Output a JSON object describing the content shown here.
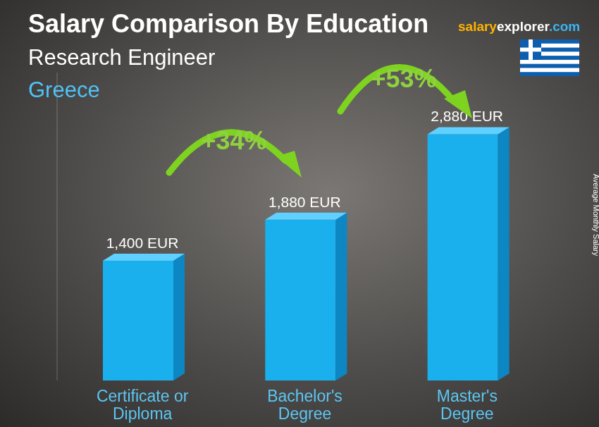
{
  "chart_data": {
    "type": "bar",
    "title": "Salary Comparison By Education",
    "subtitle": "Research Engineer",
    "country": "Greece",
    "source": "salaryexplorer.com",
    "ylabel": "Average Monthly Salary",
    "categories": [
      "Certificate or Diploma",
      "Bachelor's Degree",
      "Master's Degree"
    ],
    "values": [
      1400,
      1880,
      2880
    ],
    "value_labels": [
      "1,400 EUR",
      "1,880 EUR",
      "2,880 EUR"
    ],
    "color": "#1ab0ee",
    "ylim": [
      0,
      3600
    ],
    "data_labels": true,
    "tick_labels": "x",
    "annotations": [
      "+34%",
      "+53%"
    ]
  }
}
